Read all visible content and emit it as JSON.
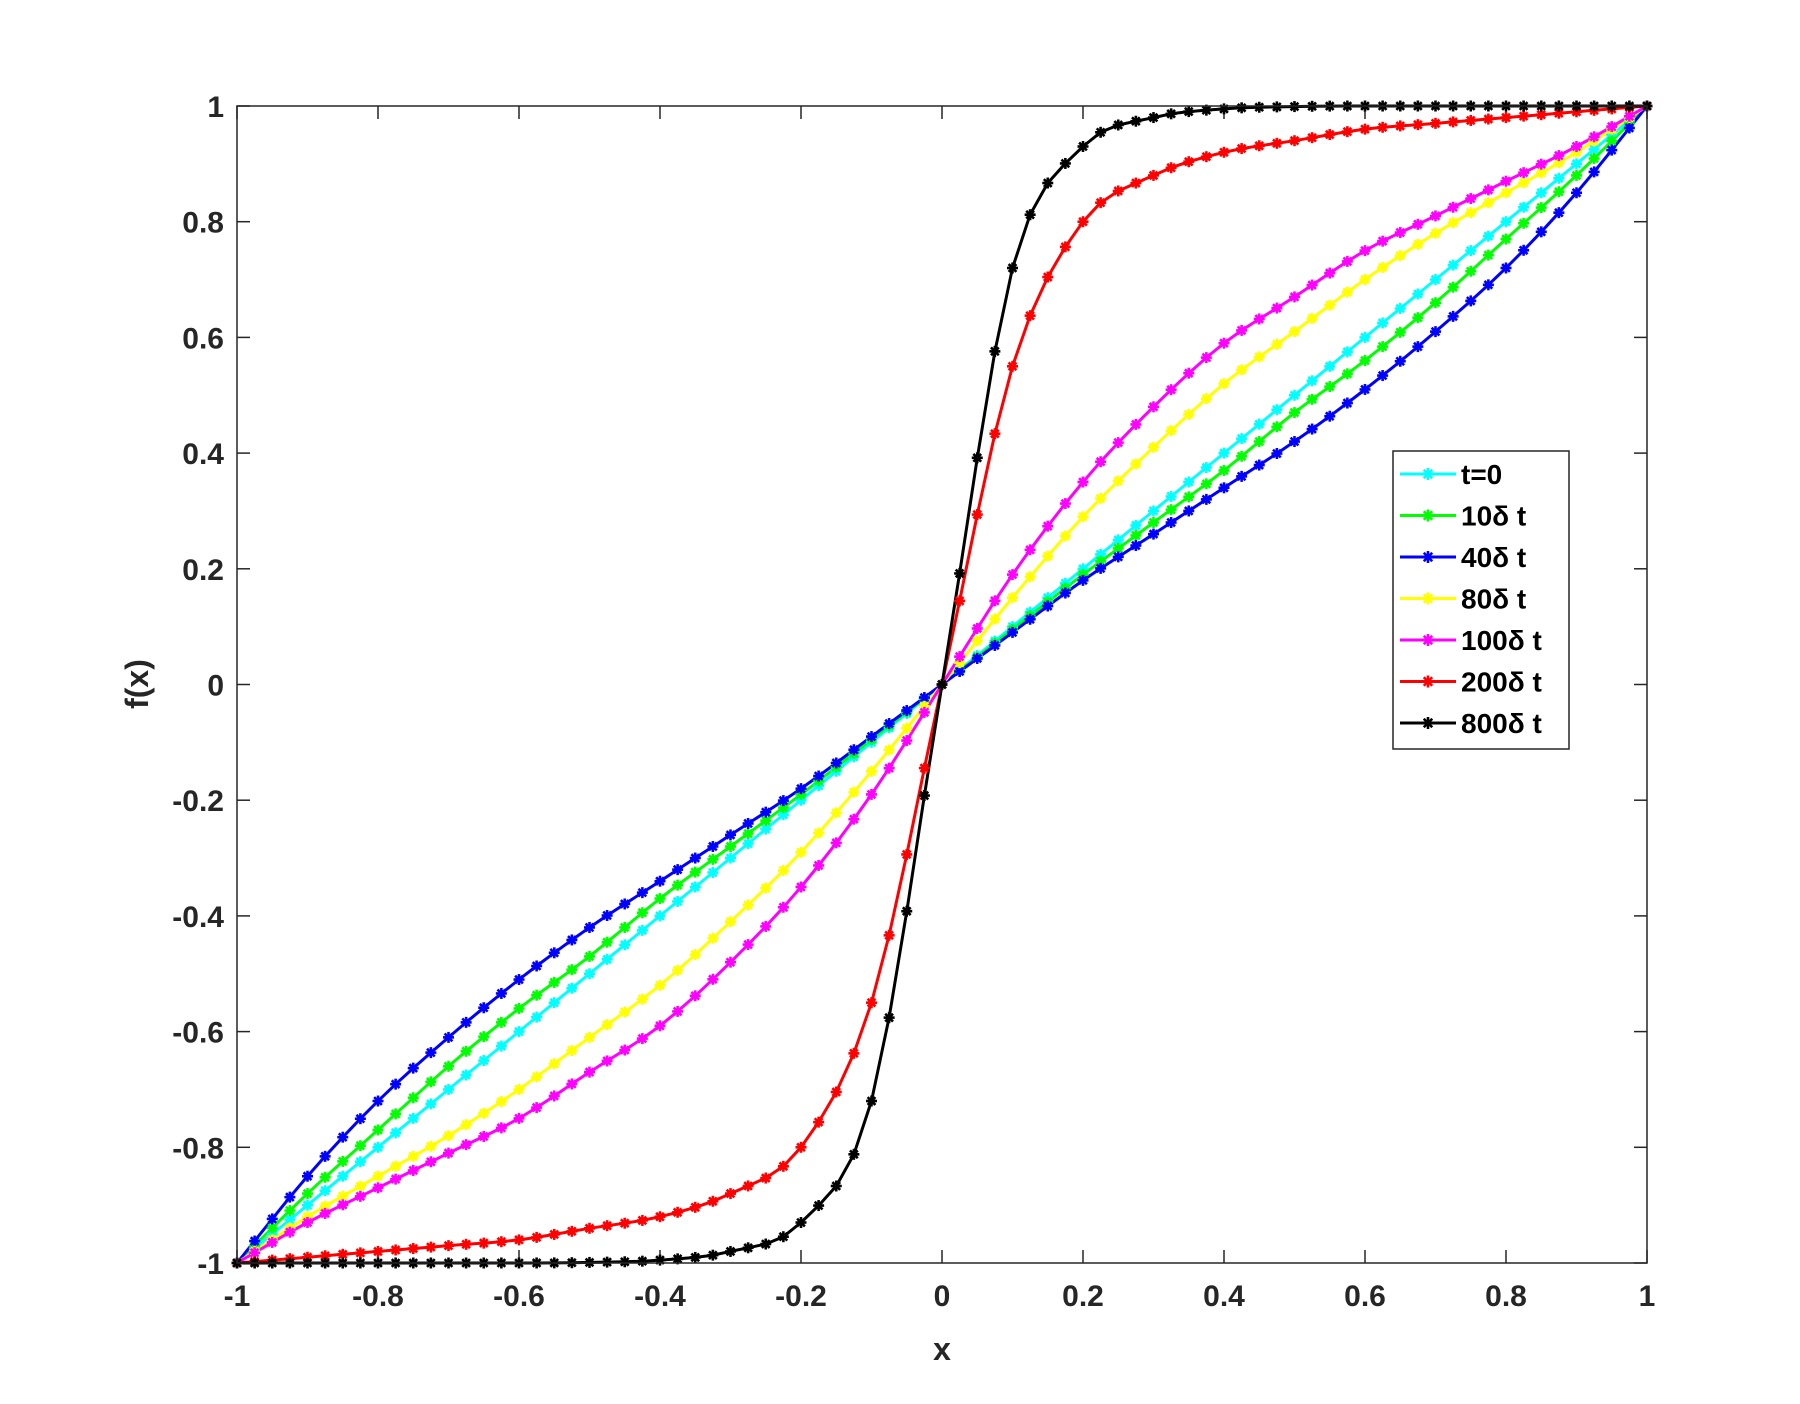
{
  "chart_data": {
    "type": "line",
    "title": "",
    "xlabel": "x",
    "ylabel": "f(x)",
    "xlim": [
      -1,
      1
    ],
    "ylim": [
      -1,
      1
    ],
    "x_ticks": [
      "-1",
      "-0.8",
      "-0.6",
      "-0.4",
      "-0.2",
      "0",
      "0.2",
      "0.4",
      "0.6",
      "0.8",
      "1"
    ],
    "y_ticks": [
      "1",
      "0.8",
      "0.6",
      "0.4",
      "0.2",
      "0",
      "-0.2",
      "-0.4",
      "-0.6",
      "-0.8",
      "-1"
    ],
    "grid": false,
    "legend_position": "right-center",
    "marker": "asterisk",
    "x": [
      -1,
      -0.9,
      -0.8,
      -0.7,
      -0.6,
      -0.5,
      -0.4,
      -0.3,
      -0.2,
      -0.1,
      0,
      0.1,
      0.2,
      0.3,
      0.4,
      0.5,
      0.6,
      0.7,
      0.8,
      0.9,
      1
    ],
    "series": [
      {
        "name": "t=0",
        "color": "#00ffff",
        "values": [
          -1,
          -0.9,
          -0.8,
          -0.7,
          -0.6,
          -0.5,
          -0.4,
          -0.3,
          -0.2,
          -0.1,
          0,
          0.1,
          0.2,
          0.3,
          0.4,
          0.5,
          0.6,
          0.7,
          0.8,
          0.9,
          1
        ]
      },
      {
        "name": "10δ t",
        "color": "#00ff00",
        "values": [
          -1,
          -0.88,
          -0.77,
          -0.66,
          -0.56,
          -0.47,
          -0.37,
          -0.28,
          -0.19,
          -0.095,
          0,
          0.095,
          0.19,
          0.28,
          0.37,
          0.47,
          0.56,
          0.66,
          0.77,
          0.88,
          1
        ]
      },
      {
        "name": "40δ t",
        "color": "#0000ff",
        "values": [
          -1,
          -0.85,
          -0.72,
          -0.61,
          -0.51,
          -0.42,
          -0.34,
          -0.26,
          -0.18,
          -0.09,
          0,
          0.09,
          0.18,
          0.26,
          0.34,
          0.42,
          0.51,
          0.61,
          0.72,
          0.85,
          1
        ]
      },
      {
        "name": "80δ t",
        "color": "#ffff00",
        "values": [
          -1,
          -0.92,
          -0.85,
          -0.78,
          -0.7,
          -0.61,
          -0.52,
          -0.41,
          -0.29,
          -0.15,
          0,
          0.15,
          0.29,
          0.41,
          0.52,
          0.61,
          0.7,
          0.78,
          0.85,
          0.92,
          1
        ]
      },
      {
        "name": "100δ t",
        "color": "#ff00ff",
        "values": [
          -1,
          -0.93,
          -0.87,
          -0.81,
          -0.75,
          -0.67,
          -0.59,
          -0.48,
          -0.35,
          -0.19,
          0,
          0.19,
          0.35,
          0.48,
          0.59,
          0.67,
          0.75,
          0.81,
          0.87,
          0.93,
          1
        ]
      },
      {
        "name": "200δ t",
        "color": "#ff0000",
        "values": [
          -1,
          -0.99,
          -0.98,
          -0.97,
          -0.96,
          -0.94,
          -0.92,
          -0.88,
          -0.8,
          -0.55,
          0,
          0.55,
          0.8,
          0.88,
          0.92,
          0.94,
          0.96,
          0.97,
          0.98,
          0.99,
          1
        ]
      },
      {
        "name": "800δ t",
        "color": "#000000",
        "values": [
          -1,
          -1,
          -1,
          -1,
          -1,
          -0.999,
          -0.995,
          -0.98,
          -0.93,
          -0.72,
          0,
          0.72,
          0.93,
          0.98,
          0.995,
          0.999,
          1,
          1,
          1,
          1,
          1
        ]
      }
    ]
  }
}
